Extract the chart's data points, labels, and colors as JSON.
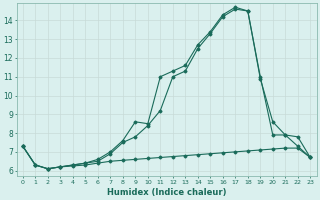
{
  "xlabel": "Humidex (Indice chaleur)",
  "bg_color": "#daf0ee",
  "grid_color": "#c8dbd8",
  "line_color": "#1a6b5a",
  "xlim": [
    -0.5,
    23.5
  ],
  "ylim": [
    5.7,
    14.9
  ],
  "xticks": [
    0,
    1,
    2,
    3,
    4,
    5,
    6,
    7,
    8,
    9,
    10,
    11,
    12,
    13,
    14,
    15,
    16,
    17,
    18,
    19,
    20,
    21,
    22,
    23
  ],
  "yticks": [
    6,
    7,
    8,
    9,
    10,
    11,
    12,
    13,
    14
  ],
  "line1_x": [
    0,
    1,
    2,
    3,
    4,
    5,
    6,
    7,
    8,
    9,
    10,
    11,
    12,
    13,
    14,
    15,
    16,
    17,
    18,
    19,
    20,
    21,
    22,
    23
  ],
  "line1_y": [
    7.3,
    6.3,
    6.1,
    6.2,
    6.25,
    6.3,
    6.4,
    6.5,
    6.55,
    6.6,
    6.65,
    6.7,
    6.75,
    6.8,
    6.85,
    6.9,
    6.95,
    7.0,
    7.05,
    7.1,
    7.15,
    7.2,
    7.2,
    6.7
  ],
  "line2_x": [
    0,
    1,
    2,
    3,
    4,
    5,
    6,
    7,
    8,
    9,
    10,
    11,
    12,
    13,
    14,
    15,
    16,
    17,
    18,
    19,
    20,
    21,
    22,
    23
  ],
  "line2_y": [
    7.3,
    6.3,
    6.1,
    6.2,
    6.3,
    6.4,
    6.6,
    7.0,
    7.6,
    8.6,
    8.5,
    11.0,
    11.3,
    11.6,
    12.7,
    13.4,
    14.3,
    14.7,
    14.5,
    10.9,
    8.6,
    7.9,
    7.3,
    6.7
  ],
  "line3_x": [
    0,
    1,
    2,
    3,
    4,
    5,
    6,
    7,
    8,
    9,
    10,
    11,
    12,
    13,
    14,
    15,
    16,
    17,
    18,
    19,
    20,
    21,
    22,
    23
  ],
  "line3_y": [
    7.3,
    6.3,
    6.1,
    6.2,
    6.3,
    6.4,
    6.5,
    6.9,
    7.5,
    7.8,
    8.4,
    9.2,
    11.0,
    11.3,
    12.5,
    13.3,
    14.2,
    14.6,
    14.5,
    11.0,
    7.9,
    7.9,
    7.8,
    6.7
  ]
}
